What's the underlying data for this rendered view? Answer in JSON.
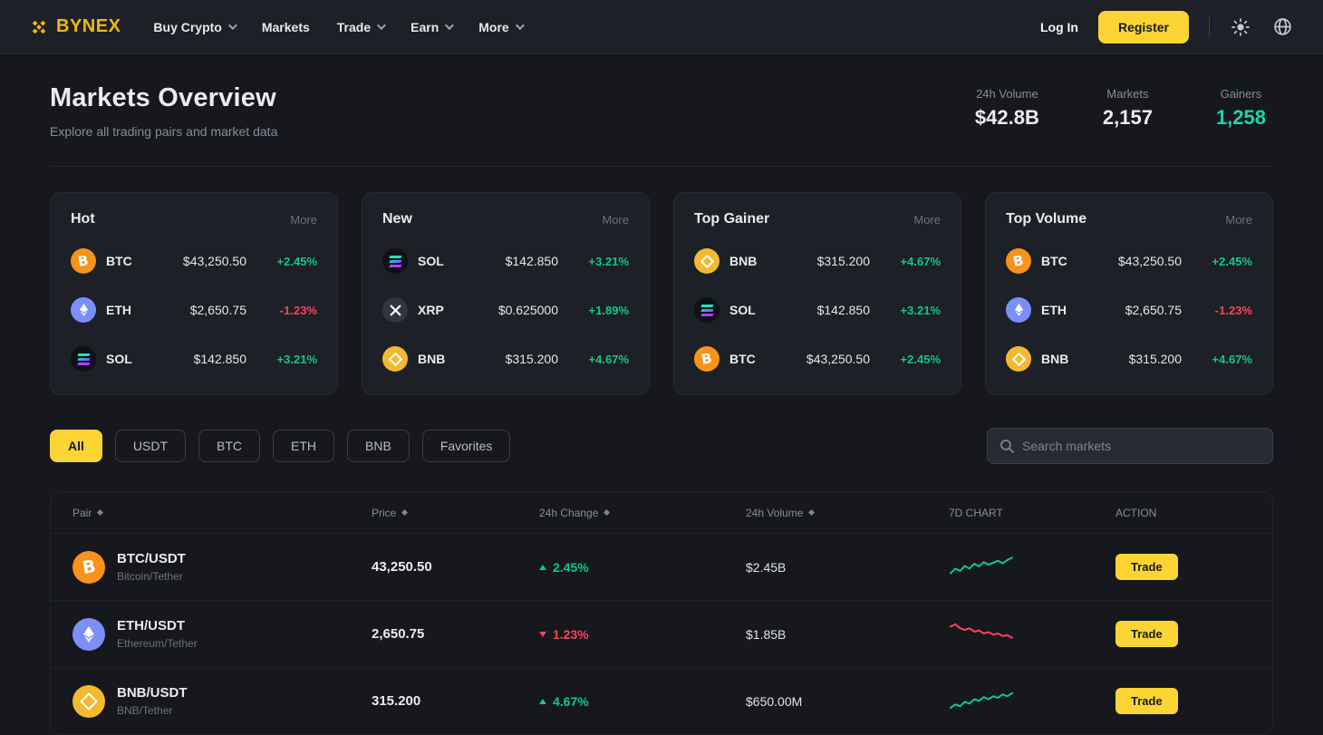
{
  "brand": {
    "name": "BYNEX"
  },
  "nav": {
    "items": [
      {
        "label": "Buy Crypto",
        "dropdown": true
      },
      {
        "label": "Markets",
        "dropdown": false
      },
      {
        "label": "Trade",
        "dropdown": true
      },
      {
        "label": "Earn",
        "dropdown": true
      },
      {
        "label": "More",
        "dropdown": true
      }
    ],
    "login_label": "Log In",
    "register_label": "Register"
  },
  "hero": {
    "title": "Markets Overview",
    "subtitle": "Explore all trading pairs and market data",
    "stats": [
      {
        "label": "24h Volume",
        "value": "$42.8B",
        "tone": "default"
      },
      {
        "label": "Markets",
        "value": "2,157",
        "tone": "default"
      },
      {
        "label": "Gainers",
        "value": "1,258",
        "tone": "up"
      }
    ]
  },
  "cards": [
    {
      "title": "Hot",
      "more_label": "More",
      "coins": [
        {
          "symbol": "BTC",
          "icon": "btc",
          "price": "$43,250.50",
          "change": "+2.45%",
          "dir": "up"
        },
        {
          "symbol": "ETH",
          "icon": "eth",
          "price": "$2,650.75",
          "change": "-1.23%",
          "dir": "down"
        },
        {
          "symbol": "SOL",
          "icon": "sol",
          "price": "$142.850",
          "change": "+3.21%",
          "dir": "up"
        }
      ]
    },
    {
      "title": "New",
      "more_label": "More",
      "coins": [
        {
          "symbol": "SOL",
          "icon": "sol",
          "price": "$142.850",
          "change": "+3.21%",
          "dir": "up"
        },
        {
          "symbol": "XRP",
          "icon": "xrp",
          "price": "$0.625000",
          "change": "+1.89%",
          "dir": "up"
        },
        {
          "symbol": "BNB",
          "icon": "bnb",
          "price": "$315.200",
          "change": "+4.67%",
          "dir": "up"
        }
      ]
    },
    {
      "title": "Top Gainer",
      "more_label": "More",
      "coins": [
        {
          "symbol": "BNB",
          "icon": "bnb",
          "price": "$315.200",
          "change": "+4.67%",
          "dir": "up"
        },
        {
          "symbol": "SOL",
          "icon": "sol",
          "price": "$142.850",
          "change": "+3.21%",
          "dir": "up"
        },
        {
          "symbol": "BTC",
          "icon": "btc",
          "price": "$43,250.50",
          "change": "+2.45%",
          "dir": "up"
        }
      ]
    },
    {
      "title": "Top Volume",
      "more_label": "More",
      "coins": [
        {
          "symbol": "BTC",
          "icon": "btc",
          "price": "$43,250.50",
          "change": "+2.45%",
          "dir": "up"
        },
        {
          "symbol": "ETH",
          "icon": "eth",
          "price": "$2,650.75",
          "change": "-1.23%",
          "dir": "down"
        },
        {
          "symbol": "BNB",
          "icon": "bnb",
          "price": "$315.200",
          "change": "+4.67%",
          "dir": "up"
        }
      ]
    }
  ],
  "filters": {
    "tabs": [
      {
        "label": "All",
        "active": true
      },
      {
        "label": "USDT",
        "active": false
      },
      {
        "label": "BTC",
        "active": false
      },
      {
        "label": "ETH",
        "active": false
      },
      {
        "label": "BNB",
        "active": false
      },
      {
        "label": "Favorites",
        "active": false
      }
    ],
    "search_placeholder": "Search markets"
  },
  "market_table": {
    "headers": [
      {
        "label": "Pair",
        "sortable": true
      },
      {
        "label": "Price",
        "sortable": true
      },
      {
        "label": "24h Change",
        "sortable": true
      },
      {
        "label": "24h Volume",
        "sortable": true
      },
      {
        "label": "7D CHART",
        "sortable": false
      },
      {
        "label": "ACTION",
        "sortable": false
      }
    ],
    "rows": [
      {
        "pair": "BTC/USDT",
        "name": "Bitcoin/Tether",
        "icon": "btc",
        "price": "43,250.50",
        "change": "2.45%",
        "dir": "up",
        "volume": "$2.45B",
        "action_label": "Trade",
        "spark": {
          "dir": "up",
          "values": [
            14,
            36,
            26,
            48,
            36,
            58,
            46,
            66,
            54,
            62,
            72,
            60,
            76,
            86
          ]
        }
      },
      {
        "pair": "ETH/USDT",
        "name": "Ethereum/Tether",
        "icon": "eth",
        "price": "2,650.75",
        "change": "1.23%",
        "dir": "down",
        "volume": "$1.85B",
        "action_label": "Trade",
        "spark": {
          "dir": "down",
          "values": [
            78,
            88,
            70,
            62,
            70,
            54,
            60,
            46,
            52,
            40,
            46,
            34,
            38,
            26
          ]
        }
      },
      {
        "pair": "BNB/USDT",
        "name": "BNB/Tether",
        "icon": "bnb",
        "price": "315.200",
        "change": "4.67%",
        "dir": "up",
        "volume": "$650.00M",
        "action_label": "Trade",
        "spark": {
          "dir": "up",
          "values": [
            12,
            28,
            20,
            40,
            32,
            52,
            44,
            62,
            52,
            66,
            58,
            74,
            66,
            80
          ]
        }
      }
    ]
  },
  "colors": {
    "accent": "#fcd535",
    "brand": "#f0b90b",
    "up": "#0ecb81",
    "down": "#f6465d",
    "gainers_green": "#1dd6a7",
    "text_primary": "#eaecef",
    "text_secondary": "#848e9c"
  }
}
